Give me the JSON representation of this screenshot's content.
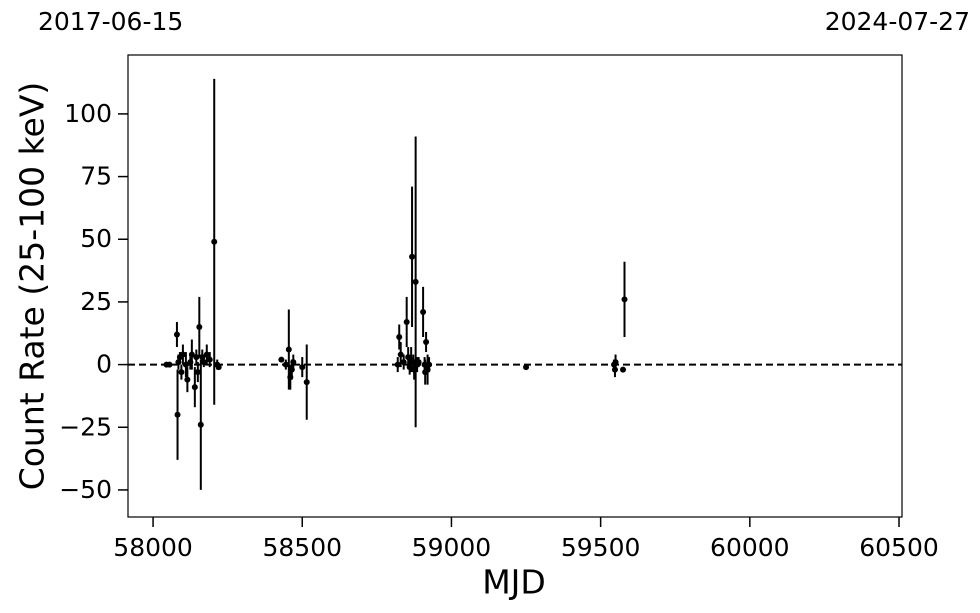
{
  "chart_data": {
    "type": "errorbar",
    "xlabel": "MJD",
    "ylabel": "Count Rate (25-100 keV)",
    "annotations": [
      {
        "text": "2017-06-15",
        "position": "top-left"
      },
      {
        "text": "2024-07-27",
        "position": "top-right"
      }
    ],
    "hline": 0,
    "color": "#000000",
    "xlim": [
      57916,
      60510
    ],
    "ylim": [
      -60.8,
      123.5
    ],
    "xticks": [
      58000,
      58500,
      59000,
      59500,
      60000,
      60500
    ],
    "yticks": [
      {
        "value": -50,
        "label": "−50"
      },
      {
        "value": -25,
        "label": "−25"
      },
      0,
      25,
      50,
      75,
      100
    ],
    "series": [
      {
        "x": [
          58045,
          58055,
          58080,
          58082,
          58085,
          58090,
          58095,
          58100,
          58110,
          58115,
          58125,
          58130,
          58140,
          58145,
          58150,
          58155,
          58160,
          58165,
          58170,
          58180,
          58190,
          58205,
          58215,
          58220,
          58430,
          58445,
          58455,
          58460,
          58465,
          58470,
          58500,
          58515,
          58820,
          58825,
          58830,
          58840,
          58850,
          58855,
          58860,
          58865,
          58868,
          58872,
          58875,
          58880,
          58885,
          58890,
          58905,
          58910,
          58912,
          58915,
          58920,
          58925,
          59250,
          59545,
          59548,
          59550,
          59575,
          59580
        ],
        "values": [
          0,
          0,
          12,
          -20,
          1,
          3,
          -3,
          4,
          0,
          -6,
          1,
          4,
          -9,
          3,
          -3,
          15,
          -24,
          3,
          1,
          4,
          2,
          49,
          0,
          -1,
          2,
          0,
          6,
          -5,
          -2,
          1,
          -1,
          -7,
          0,
          11,
          4,
          1,
          17,
          3,
          -1,
          2,
          43,
          1,
          -2,
          33,
          0,
          1,
          21,
          0,
          -3,
          9,
          -2,
          0,
          -1,
          0,
          -2,
          1,
          -2,
          26
        ],
        "errors": [
          0.5,
          0.5,
          5,
          18,
          3,
          2,
          3,
          4,
          5,
          5,
          3,
          6,
          8,
          3,
          4,
          12,
          26,
          3,
          2,
          4,
          3,
          65,
          2,
          1,
          1,
          2,
          16,
          5,
          4,
          3,
          4,
          15,
          3,
          5,
          5,
          3,
          10,
          4,
          3,
          5,
          28,
          3,
          4,
          58,
          3,
          2,
          10,
          3,
          5,
          4,
          6,
          3,
          0.5,
          2,
          3,
          3,
          1,
          15
        ]
      }
    ]
  }
}
